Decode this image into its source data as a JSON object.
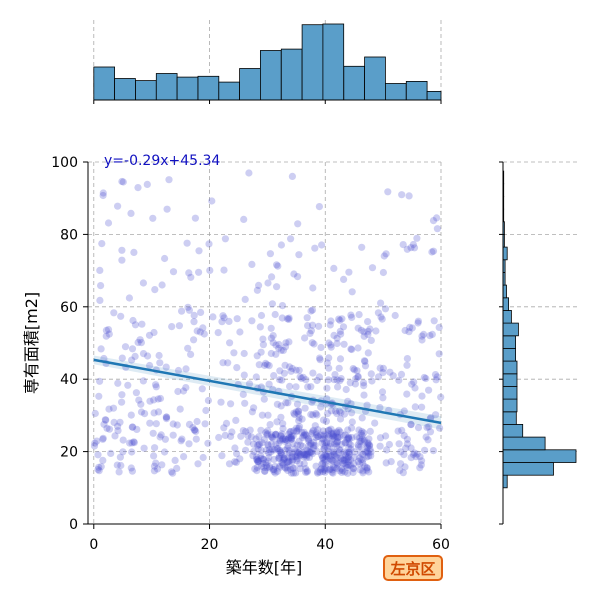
{
  "colors": {
    "scatter": "#4a4fd0",
    "histogram_fill": "#5a9ec9",
    "regression_line": "#1f77b4",
    "equation_text": "#1010c0",
    "grid": "#aaaaaa",
    "badge_fill": "#ffd49a",
    "badge_border": "#e06010",
    "badge_text": "#d04a00"
  },
  "badge": {
    "label": "左京区"
  },
  "chart_data": {
    "type": "scatter",
    "title": "",
    "xlabel": "築年数[年]",
    "ylabel": "専有面積[m2]",
    "xlim": [
      -1,
      60
    ],
    "ylim": [
      0,
      100
    ],
    "xticks": [
      0,
      20,
      40,
      60
    ],
    "yticks": [
      0,
      20,
      40,
      60,
      80,
      100
    ],
    "grid": true,
    "regression": {
      "slope": -0.29,
      "intercept": 45.34,
      "label": "y=-0.29x+45.34"
    },
    "x_histogram": {
      "bin_edges": [
        0,
        3.6,
        7.2,
        10.8,
        14.4,
        18,
        21.6,
        25.2,
        28.8,
        32.4,
        36,
        39.6,
        43.2,
        46.8,
        50.4,
        54,
        57.6,
        60
      ],
      "counts": [
        46,
        30,
        27,
        37,
        32,
        33,
        25,
        44,
        69,
        71,
        105,
        106,
        47,
        60,
        23,
        26,
        12
      ]
    },
    "y_histogram": {
      "bin_edges": [
        10,
        13.5,
        17,
        20.5,
        24,
        27.5,
        31,
        34.5,
        38,
        41.5,
        45,
        48.5,
        52,
        55.5,
        59,
        62.5,
        66,
        69.5,
        73,
        76.5,
        80,
        83.5,
        87,
        90.5,
        94,
        97.5
      ],
      "counts": [
        6,
        72,
        104,
        60,
        28,
        19,
        20,
        20,
        20,
        20,
        18,
        18,
        22,
        12,
        8,
        5,
        3,
        3,
        6,
        2,
        2,
        1,
        1,
        1,
        1
      ]
    },
    "clusters": [
      {
        "x": [
          28,
          48
        ],
        "y": [
          14,
          26
        ],
        "count": 330
      },
      {
        "x": [
          0,
          60
        ],
        "y": [
          14,
          30
        ],
        "count": 230
      },
      {
        "x": [
          0,
          60
        ],
        "y": [
          30,
          60
        ],
        "count": 230
      },
      {
        "x": [
          28,
          48
        ],
        "y": [
          30,
          58
        ],
        "count": 100
      },
      {
        "x": [
          0,
          60
        ],
        "y": [
          60,
          80
        ],
        "count": 60
      },
      {
        "x": [
          0,
          60
        ],
        "y": [
          80,
          97
        ],
        "count": 25
      }
    ]
  }
}
